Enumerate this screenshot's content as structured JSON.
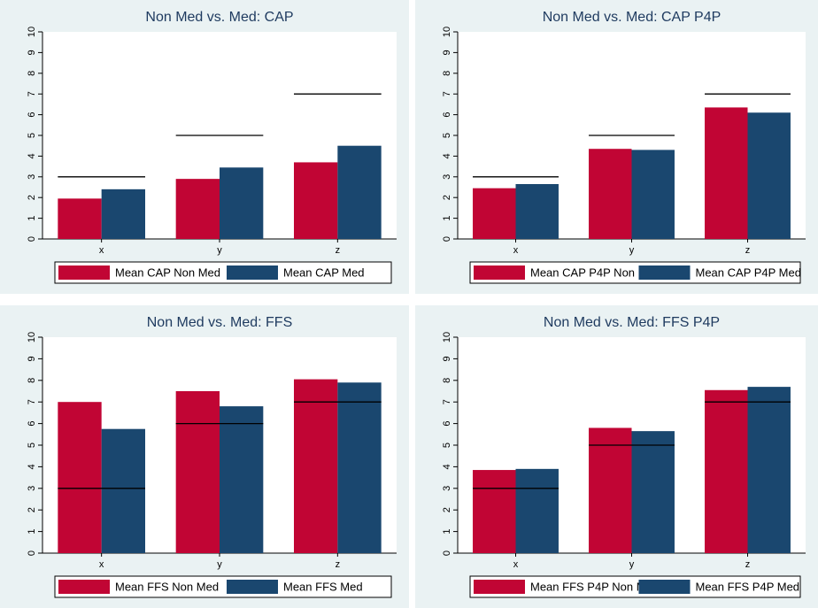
{
  "chart_data": [
    {
      "type": "bar",
      "title": "Non Med vs. Med: CAP",
      "categories": [
        "x",
        "y",
        "z"
      ],
      "series": [
        {
          "name": "Mean CAP Non Med",
          "color": "#c10534",
          "values": [
            1.95,
            2.9,
            3.7
          ]
        },
        {
          "name": "Mean CAP Med",
          "color": "#1a476f",
          "values": [
            2.4,
            3.45,
            4.5
          ]
        }
      ],
      "reference_values": [
        3,
        5,
        7
      ],
      "reference_color": "#000000",
      "ylim": [
        0,
        10
      ],
      "yticks": [
        0,
        1,
        2,
        3,
        4,
        5,
        6,
        7,
        8,
        9,
        10
      ]
    },
    {
      "type": "bar",
      "title": "Non Med vs. Med: CAP P4P",
      "categories": [
        "x",
        "y",
        "z"
      ],
      "series": [
        {
          "name": "Mean CAP P4P Non Med",
          "color": "#c10534",
          "values": [
            2.45,
            4.35,
            6.35
          ]
        },
        {
          "name": "Mean CAP P4P Med",
          "color": "#1a476f",
          "values": [
            2.65,
            4.3,
            6.1
          ]
        }
      ],
      "reference_values": [
        3,
        5,
        7
      ],
      "reference_color": "#000000",
      "ylim": [
        0,
        10
      ],
      "yticks": [
        0,
        1,
        2,
        3,
        4,
        5,
        6,
        7,
        8,
        9,
        10
      ]
    },
    {
      "type": "bar",
      "title": "Non Med vs. Med: FFS",
      "categories": [
        "x",
        "y",
        "z"
      ],
      "series": [
        {
          "name": "Mean FFS Non Med",
          "color": "#c10534",
          "values": [
            7.0,
            7.5,
            8.05
          ]
        },
        {
          "name": "Mean FFS Med",
          "color": "#1a476f",
          "values": [
            5.75,
            6.8,
            7.9
          ]
        }
      ],
      "reference_values": [
        3,
        6,
        7
      ],
      "reference_color": "#000000",
      "ylim": [
        0,
        10
      ],
      "yticks": [
        0,
        1,
        2,
        3,
        4,
        5,
        6,
        7,
        8,
        9,
        10
      ]
    },
    {
      "type": "bar",
      "title": "Non Med vs. Med: FFS P4P",
      "categories": [
        "x",
        "y",
        "z"
      ],
      "series": [
        {
          "name": "Mean FFS P4P Non Med",
          "color": "#c10534",
          "values": [
            3.85,
            5.8,
            7.55
          ]
        },
        {
          "name": "Mean FFS P4P Med",
          "color": "#1a476f",
          "values": [
            3.9,
            5.65,
            7.7
          ]
        }
      ],
      "reference_values": [
        3,
        5,
        7
      ],
      "reference_color": "#000000",
      "ylim": [
        0,
        10
      ],
      "yticks": [
        0,
        1,
        2,
        3,
        4,
        5,
        6,
        7,
        8,
        9,
        10
      ]
    }
  ]
}
